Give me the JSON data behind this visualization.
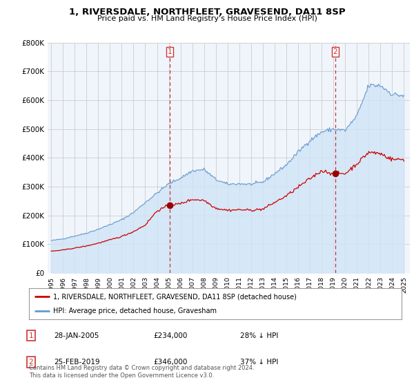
{
  "title": "1, RIVERSDALE, NORTHFLEET, GRAVESEND, DA11 8SP",
  "subtitle": "Price paid vs. HM Land Registry's House Price Index (HPI)",
  "background_color": "#ffffff",
  "plot_bg_color": "#f0f5fb",
  "grid_color": "#cccccc",
  "ylim": [
    0,
    800000
  ],
  "yticks": [
    0,
    100000,
    200000,
    300000,
    400000,
    500000,
    600000,
    700000,
    800000
  ],
  "ytick_labels": [
    "£0",
    "£100K",
    "£200K",
    "£300K",
    "£400K",
    "£500K",
    "£600K",
    "£700K",
    "£800K"
  ],
  "xlim_start": 1994.7,
  "xlim_end": 2025.5,
  "xticks": [
    1995,
    1996,
    1997,
    1998,
    1999,
    2000,
    2001,
    2002,
    2003,
    2004,
    2005,
    2006,
    2007,
    2008,
    2009,
    2010,
    2011,
    2012,
    2013,
    2014,
    2015,
    2016,
    2017,
    2018,
    2019,
    2020,
    2021,
    2022,
    2023,
    2024,
    2025
  ],
  "hpi_color": "#6699cc",
  "hpi_fill_color": "#d0e4f7",
  "price_color": "#cc0000",
  "marker1_x": 2005.08,
  "marker1_y": 234000,
  "marker2_x": 2019.15,
  "marker2_y": 346000,
  "marker_color": "#990000",
  "vline_color": "#cc3333",
  "legend_label1": "1, RIVERSDALE, NORTHFLEET, GRAVESEND, DA11 8SP (detached house)",
  "legend_label2": "HPI: Average price, detached house, Gravesham",
  "annotation1_num": "1",
  "annotation1_date": "28-JAN-2005",
  "annotation1_price": "£234,000",
  "annotation1_pct": "28% ↓ HPI",
  "annotation2_num": "2",
  "annotation2_date": "25-FEB-2019",
  "annotation2_price": "£346,000",
  "annotation2_pct": "37% ↓ HPI",
  "footer": "Contains HM Land Registry data © Crown copyright and database right 2024.\nThis data is licensed under the Open Government Licence v3.0."
}
